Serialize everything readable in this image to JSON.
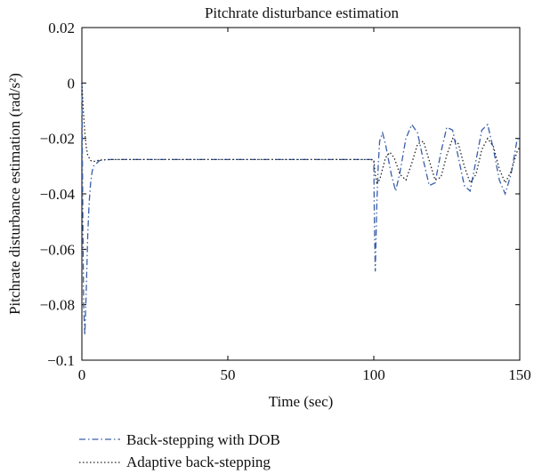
{
  "chart_data": {
    "type": "line",
    "title": "Pitchrate disturbance estimation",
    "xlabel": "Time (sec)",
    "ylabel": "Pitchrate disturbance estimation (rad/s²)",
    "xlim": [
      0,
      150
    ],
    "ylim": [
      -0.1,
      0.02
    ],
    "xticks": [
      0,
      50,
      100,
      150
    ],
    "xtick_labels": [
      "0",
      "50",
      "100",
      "150"
    ],
    "yticks": [
      0.02,
      0,
      -0.02,
      -0.04,
      -0.06,
      -0.08,
      -0.1
    ],
    "ytick_labels": [
      "0.02",
      "0",
      "−0.02",
      "−0.04",
      "−0.06",
      "−0.08",
      "−0.1"
    ],
    "grid": false,
    "legend_position": "below-left",
    "series": [
      {
        "name": "Back-stepping with DOB",
        "style": "dash-dot",
        "color": "#3a5ea8",
        "x": [
          0,
          0.3,
          0.6,
          1.0,
          1.5,
          2.0,
          2.5,
          3.0,
          3.5,
          4.0,
          5.0,
          6.0,
          8.0,
          10.0,
          20.0,
          40.0,
          60.0,
          80.0,
          99.0,
          100.0,
          100.2,
          100.5,
          101.0,
          101.5,
          102.0,
          103.0,
          104.0,
          106.0,
          107.5,
          109.0,
          111.0,
          113.0,
          115.0,
          117.0,
          119.0,
          121.0,
          123.0,
          125.0,
          127.0,
          129.0,
          131.0,
          133.0,
          135.0,
          137.0,
          139.0,
          141.0,
          143.0,
          145.0,
          147.0,
          149.0,
          150.0
        ],
        "y": [
          0,
          -0.045,
          -0.08,
          -0.091,
          -0.075,
          -0.055,
          -0.043,
          -0.036,
          -0.032,
          -0.03,
          -0.029,
          -0.028,
          -0.0277,
          -0.0276,
          -0.0276,
          -0.0276,
          -0.0276,
          -0.0276,
          -0.0276,
          -0.028,
          -0.05,
          -0.068,
          -0.045,
          -0.03,
          -0.021,
          -0.018,
          -0.022,
          -0.033,
          -0.039,
          -0.032,
          -0.02,
          -0.015,
          -0.018,
          -0.028,
          -0.037,
          -0.036,
          -0.025,
          -0.016,
          -0.017,
          -0.027,
          -0.037,
          -0.039,
          -0.028,
          -0.017,
          -0.015,
          -0.024,
          -0.035,
          -0.04,
          -0.033,
          -0.021,
          -0.019
        ]
      },
      {
        "name": "Adaptive back-stepping",
        "style": "dotted",
        "color": "#222222",
        "x": [
          0,
          0.5,
          1.0,
          1.5,
          2.0,
          3.0,
          4.0,
          5.0,
          6.0,
          8.0,
          10.0,
          20.0,
          40.0,
          60.0,
          80.0,
          99.0,
          100.0,
          100.5,
          101.0,
          102.0,
          104.0,
          105.5,
          107.0,
          109.0,
          111.0,
          113.0,
          115.0,
          117.0,
          119.0,
          121.0,
          123.0,
          125.0,
          127.0,
          129.0,
          131.0,
          133.0,
          135.0,
          137.0,
          139.0,
          141.0,
          143.0,
          145.0,
          147.0,
          149.0,
          150.0
        ],
        "y": [
          0,
          -0.01,
          -0.018,
          -0.023,
          -0.026,
          -0.028,
          -0.0283,
          -0.0281,
          -0.0278,
          -0.0277,
          -0.0276,
          -0.0276,
          -0.0276,
          -0.0276,
          -0.0276,
          -0.0276,
          -0.0277,
          -0.033,
          -0.036,
          -0.035,
          -0.027,
          -0.025,
          -0.027,
          -0.033,
          -0.035,
          -0.029,
          -0.022,
          -0.021,
          -0.028,
          -0.035,
          -0.034,
          -0.026,
          -0.02,
          -0.022,
          -0.03,
          -0.036,
          -0.033,
          -0.024,
          -0.02,
          -0.023,
          -0.031,
          -0.036,
          -0.032,
          -0.025,
          -0.023
        ]
      }
    ]
  }
}
